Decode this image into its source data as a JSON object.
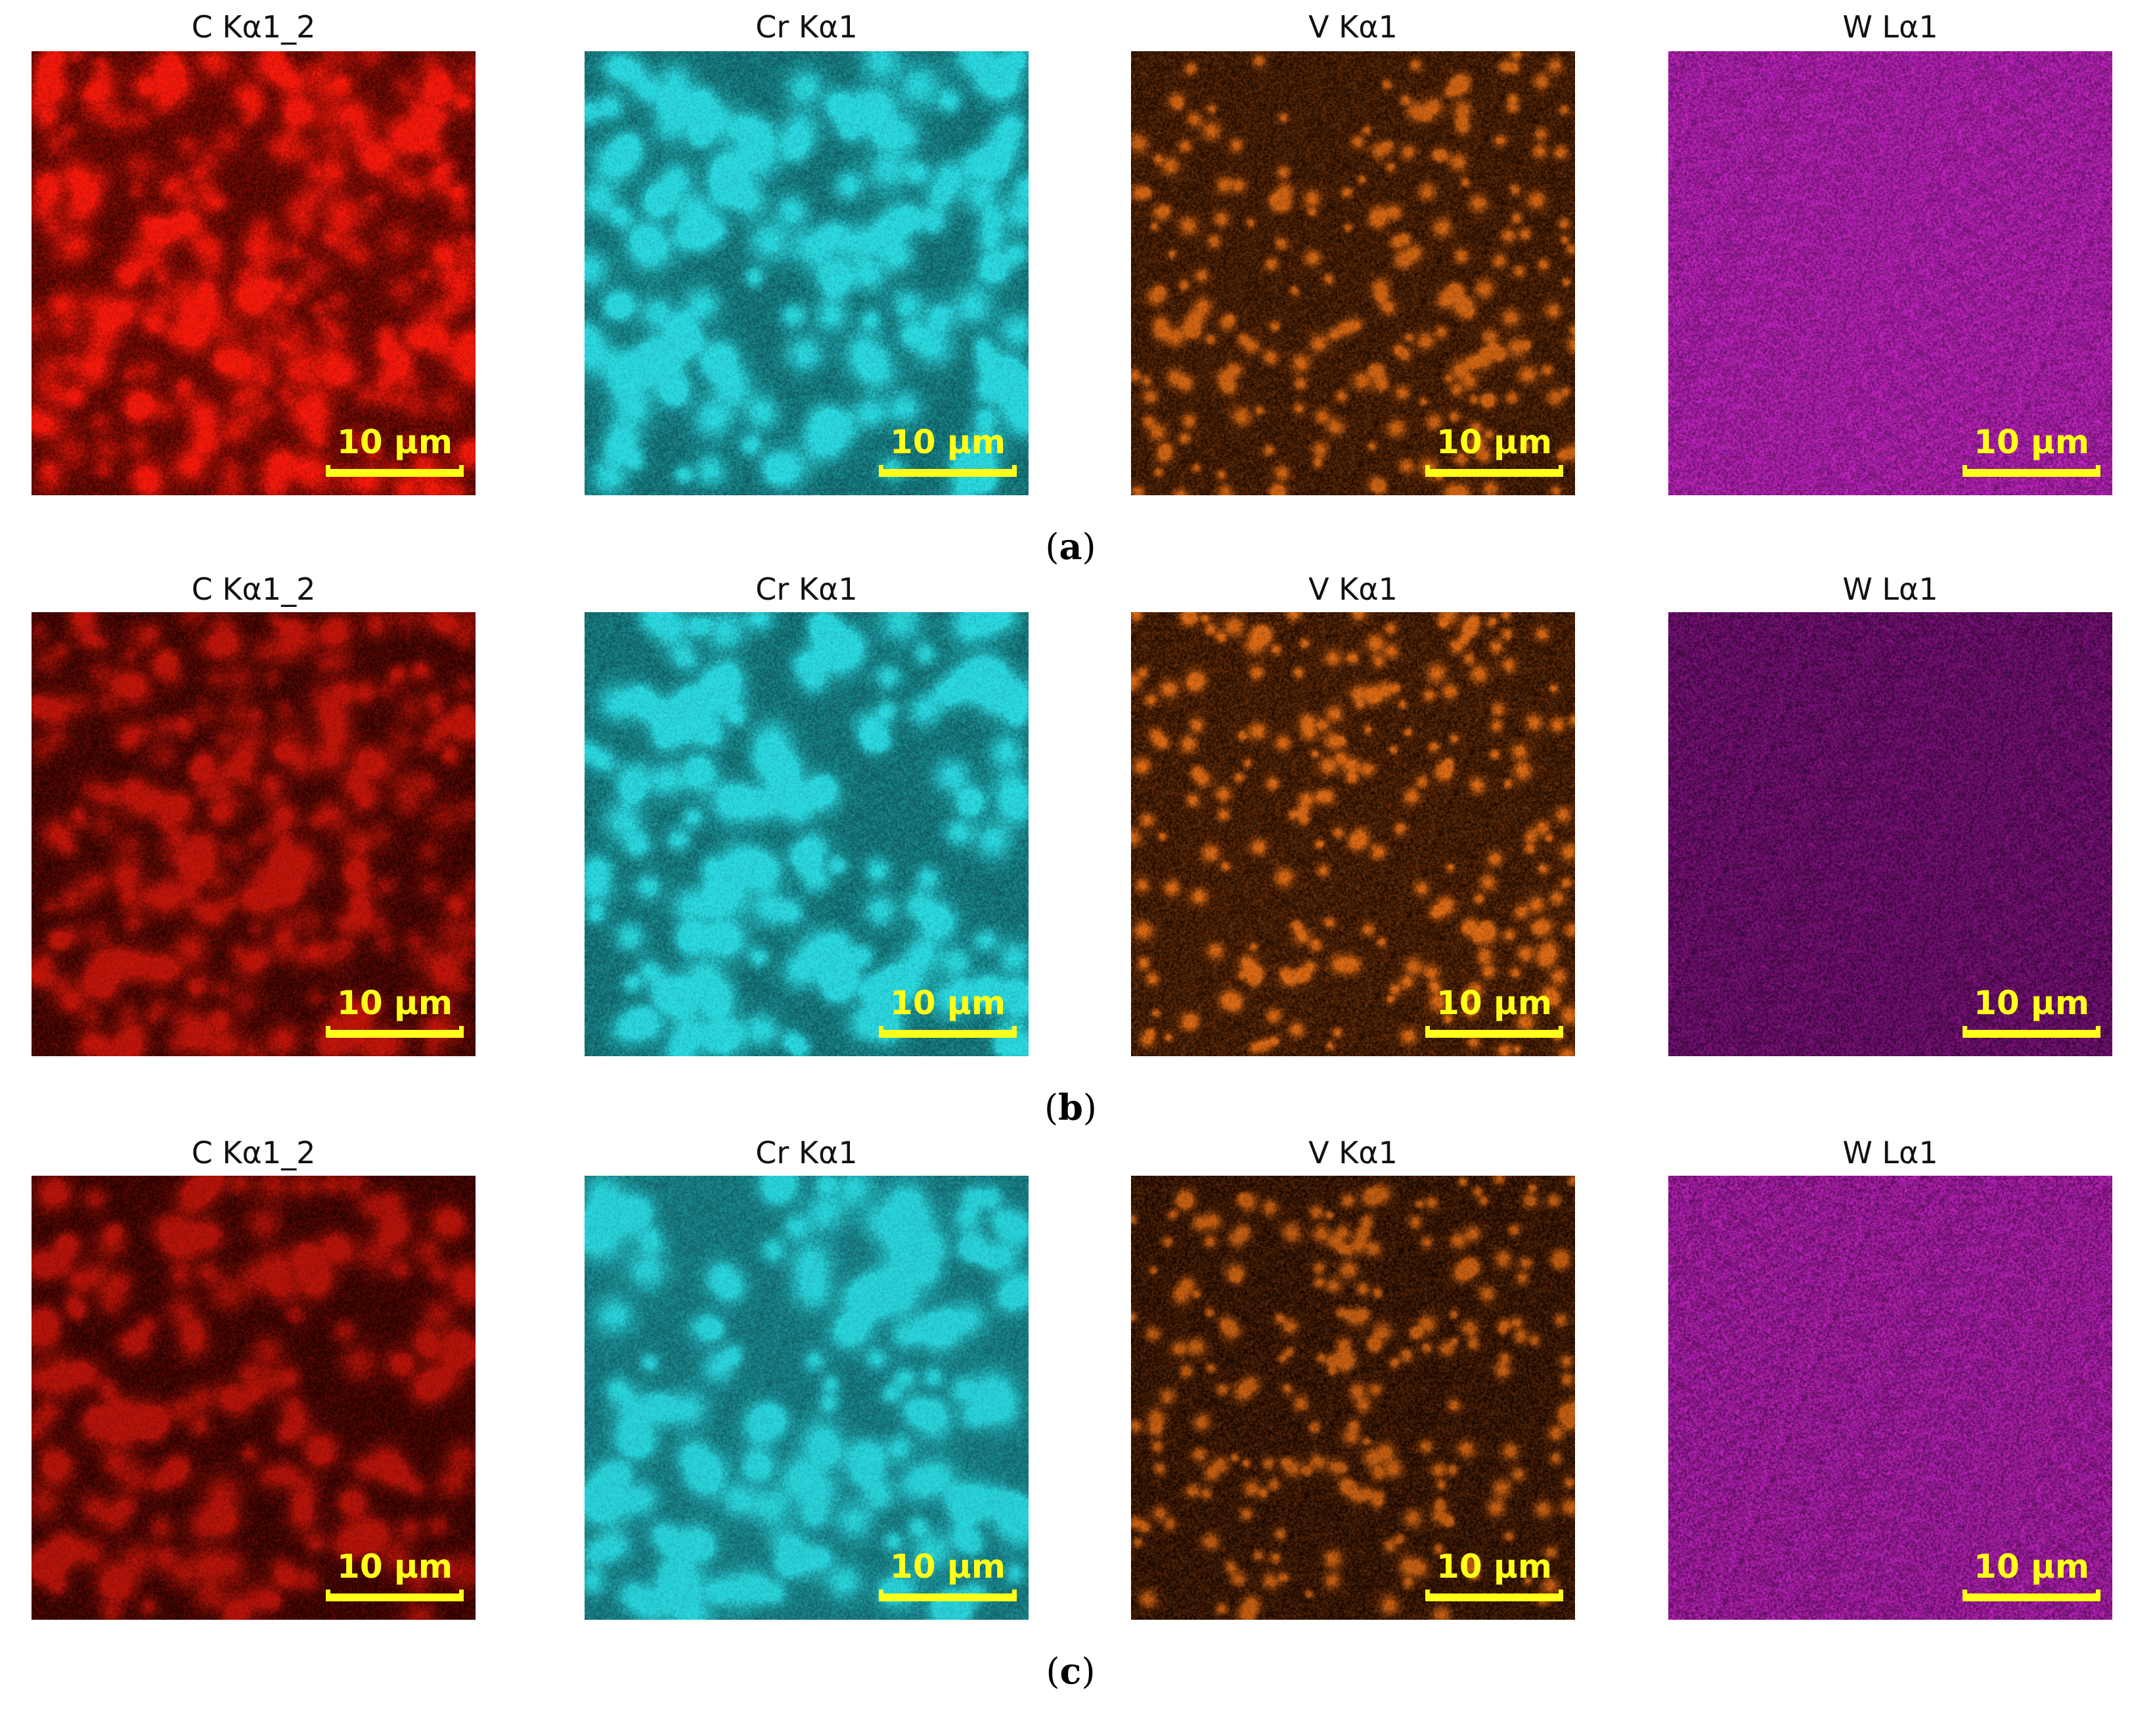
{
  "rows": [
    {
      "label_open": "(",
      "label_letter": "a",
      "label_close": ")",
      "panels": [
        {
          "title": "C Kα1_2",
          "scale": "10 μm",
          "color": "#ff1a0d",
          "bg": "#3a0400",
          "pattern": "network",
          "brightness": 0.95
        },
        {
          "title": "Cr Kα1",
          "scale": "10 μm",
          "color": "#2ee8ef",
          "bg": "#0f5a5e",
          "pattern": "blobs",
          "brightness": 0.9
        },
        {
          "title": "V Kα1",
          "scale": "10 μm",
          "color": "#f07518",
          "bg": "#1e0a00",
          "pattern": "dots",
          "brightness": 0.85
        },
        {
          "title": "W Lα1",
          "scale": "10 μm",
          "color": "#d82ad8",
          "bg": "#5a0f5a",
          "pattern": "uniform",
          "brightness": 0.9
        }
      ]
    },
    {
      "label_open": "(",
      "label_letter": "b",
      "label_close": ")",
      "panels": [
        {
          "title": "C Kα1_2",
          "scale": "10 μm",
          "color": "#e81a0d",
          "bg": "#240200",
          "pattern": "network",
          "brightness": 0.8
        },
        {
          "title": "Cr Kα1",
          "scale": "10 μm",
          "color": "#2ee8ef",
          "bg": "#0f5a5e",
          "pattern": "blobs",
          "brightness": 0.9
        },
        {
          "title": "V Kα1",
          "scale": "10 μm",
          "color": "#f07518",
          "bg": "#1e0a00",
          "pattern": "dots",
          "brightness": 0.9
        },
        {
          "title": "W Lα1",
          "scale": "10 μm",
          "color": "#b01ab0",
          "bg": "#2a052a",
          "pattern": "uniform",
          "brightness": 0.7
        }
      ]
    },
    {
      "label_open": "(",
      "label_letter": "c",
      "label_close": ")",
      "panels": [
        {
          "title": "C Kα1_2",
          "scale": "10 μm",
          "color": "#e81a0d",
          "bg": "#200100",
          "pattern": "patchy",
          "brightness": 0.75
        },
        {
          "title": "Cr Kα1",
          "scale": "10 μm",
          "color": "#2ee8ef",
          "bg": "#126268",
          "pattern": "blobs",
          "brightness": 0.85
        },
        {
          "title": "V Kα1",
          "scale": "10 μm",
          "color": "#f07518",
          "bg": "#140500",
          "pattern": "dots",
          "brightness": 0.8
        },
        {
          "title": "W Lα1",
          "scale": "10 μm",
          "color": "#d82ad8",
          "bg": "#4a0a4a",
          "pattern": "uniform",
          "brightness": 0.85
        }
      ]
    }
  ]
}
